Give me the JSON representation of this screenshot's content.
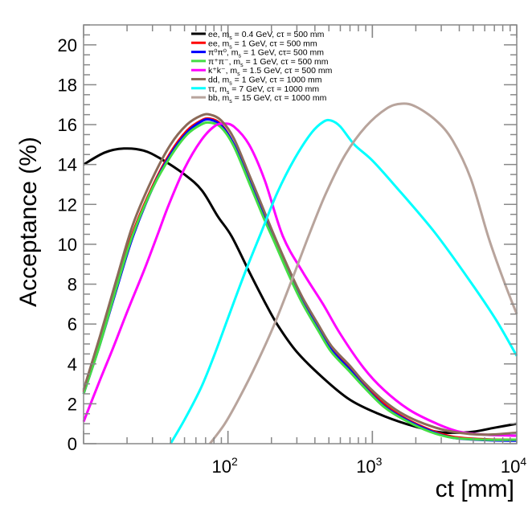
{
  "chart_data": {
    "type": "line",
    "title": "",
    "xlabel": "ct [mm]",
    "ylabel": "Acceptance (%)",
    "xscale": "log",
    "xlim": [
      10,
      10000
    ],
    "ylim": [
      0,
      21
    ],
    "x_tick_labels": [
      {
        "value": 100,
        "base": "10",
        "exp": "2"
      },
      {
        "value": 1000,
        "base": "10",
        "exp": "3"
      },
      {
        "value": 10000,
        "base": "10",
        "exp": "4"
      }
    ],
    "y_tick_labels": [
      "0",
      "2",
      "4",
      "6",
      "8",
      "10",
      "12",
      "14",
      "16",
      "18",
      "20"
    ],
    "y_ticks": [
      0,
      2,
      4,
      6,
      8,
      10,
      12,
      14,
      16,
      18,
      20
    ],
    "grid": false,
    "legend_position": "top-center",
    "series": [
      {
        "name": "ee, m_s = 0.4 GeV, cτ = 500 mm",
        "color": "#000000",
        "points": [
          [
            10,
            14.0
          ],
          [
            14,
            14.6
          ],
          [
            19,
            14.8
          ],
          [
            26,
            14.7
          ],
          [
            34,
            14.3
          ],
          [
            50,
            13.5
          ],
          [
            66,
            12.7
          ],
          [
            85,
            11.4
          ],
          [
            106,
            10.4
          ],
          [
            143,
            8.5
          ],
          [
            180,
            7.1
          ],
          [
            223,
            5.9
          ],
          [
            300,
            4.6
          ],
          [
            455,
            3.3
          ],
          [
            700,
            2.2
          ],
          [
            1100,
            1.5
          ],
          [
            1700,
            1.0
          ],
          [
            2770,
            0.6
          ],
          [
            3600,
            0.55
          ],
          [
            5000,
            0.6
          ],
          [
            7000,
            0.8
          ],
          [
            10000,
            1.0
          ]
        ]
      },
      {
        "name": "ee, m_s = 1 GeV, cτ = 500 mm",
        "color": "#ff0000",
        "points": [
          [
            10,
            2.6
          ],
          [
            13,
            5.2
          ],
          [
            17,
            8.0
          ],
          [
            22,
            10.6
          ],
          [
            30,
            12.9
          ],
          [
            40,
            14.6
          ],
          [
            52,
            15.7
          ],
          [
            65,
            16.2
          ],
          [
            75,
            16.3
          ],
          [
            90,
            16.0
          ],
          [
            110,
            15.0
          ],
          [
            140,
            13.2
          ],
          [
            175,
            11.5
          ],
          [
            210,
            10.2
          ],
          [
            270,
            8.5
          ],
          [
            330,
            7.2
          ],
          [
            420,
            5.9
          ],
          [
            520,
            4.8
          ],
          [
            700,
            3.8
          ],
          [
            870,
            3.0
          ],
          [
            1200,
            2.0
          ],
          [
            1660,
            1.3
          ],
          [
            2500,
            0.7
          ],
          [
            3600,
            0.35
          ],
          [
            6000,
            0.22
          ],
          [
            10000,
            0.2
          ]
        ]
      },
      {
        "name": "π⁰π⁰, m_s = 1 GeV, cτ= 500 mm",
        "color": "#0000ff",
        "points": [
          [
            10,
            2.5
          ],
          [
            13,
            5.0
          ],
          [
            17,
            7.8
          ],
          [
            22,
            10.4
          ],
          [
            30,
            12.8
          ],
          [
            40,
            14.5
          ],
          [
            52,
            15.6
          ],
          [
            65,
            16.15
          ],
          [
            75,
            16.25
          ],
          [
            90,
            15.95
          ],
          [
            110,
            15.0
          ],
          [
            140,
            13.2
          ],
          [
            175,
            11.5
          ],
          [
            210,
            10.2
          ],
          [
            270,
            8.4
          ],
          [
            330,
            7.1
          ],
          [
            420,
            5.8
          ],
          [
            520,
            4.7
          ],
          [
            700,
            3.7
          ],
          [
            870,
            2.9
          ],
          [
            1200,
            1.9
          ],
          [
            1660,
            1.25
          ],
          [
            2500,
            0.65
          ],
          [
            3600,
            0.3
          ],
          [
            6000,
            0.18
          ],
          [
            10000,
            0.15
          ]
        ]
      },
      {
        "name": "π⁺π⁻, m_s = 1 GeV, cτ = 500 mm",
        "color": "#44dd44",
        "points": [
          [
            10,
            2.5
          ],
          [
            13,
            5.0
          ],
          [
            17,
            7.9
          ],
          [
            22,
            10.5
          ],
          [
            30,
            12.8
          ],
          [
            40,
            14.4
          ],
          [
            52,
            15.5
          ],
          [
            65,
            16.0
          ],
          [
            75,
            16.1
          ],
          [
            90,
            15.85
          ],
          [
            110,
            14.9
          ],
          [
            140,
            13.1
          ],
          [
            175,
            11.4
          ],
          [
            210,
            10.1
          ],
          [
            270,
            8.3
          ],
          [
            330,
            7.0
          ],
          [
            420,
            5.7
          ],
          [
            520,
            4.6
          ],
          [
            700,
            3.6
          ],
          [
            870,
            2.85
          ],
          [
            1200,
            1.85
          ],
          [
            1660,
            1.2
          ],
          [
            2500,
            0.6
          ],
          [
            3600,
            0.3
          ],
          [
            6000,
            0.2
          ],
          [
            10000,
            0.2
          ]
        ]
      },
      {
        "name": "K⁺K⁻, m_s = 1.5 GeV, cτ = 500 mm",
        "color": "#ff00ff",
        "points": [
          [
            10,
            1.1
          ],
          [
            13,
            3.2
          ],
          [
            16,
            4.8
          ],
          [
            20,
            6.6
          ],
          [
            26.6,
            8.8
          ],
          [
            33,
            10.6
          ],
          [
            39,
            12.0
          ],
          [
            50,
            13.8
          ],
          [
            65,
            15.2
          ],
          [
            80,
            15.9
          ],
          [
            93,
            16.05
          ],
          [
            110,
            15.9
          ],
          [
            140,
            15.0
          ],
          [
            180,
            13.2
          ],
          [
            240,
            10.4
          ],
          [
            330,
            8.6
          ],
          [
            455,
            7.0
          ],
          [
            600,
            5.5
          ],
          [
            870,
            3.8
          ],
          [
            1200,
            2.7
          ],
          [
            1800,
            1.7
          ],
          [
            2800,
            1.0
          ],
          [
            4000,
            0.6
          ],
          [
            6000,
            0.45
          ],
          [
            10000,
            0.4
          ]
        ]
      },
      {
        "name": "dd, m_s = 1 GeV, cτ = 1000 mm",
        "color": "#8b6a58",
        "points": [
          [
            10,
            2.7
          ],
          [
            13,
            5.4
          ],
          [
            17,
            8.3
          ],
          [
            22,
            11.0
          ],
          [
            30,
            13.3
          ],
          [
            40,
            15.0
          ],
          [
            52,
            16.0
          ],
          [
            65,
            16.45
          ],
          [
            75,
            16.5
          ],
          [
            90,
            16.2
          ],
          [
            110,
            15.3
          ],
          [
            140,
            13.5
          ],
          [
            175,
            11.8
          ],
          [
            210,
            10.4
          ],
          [
            270,
            8.6
          ],
          [
            330,
            7.3
          ],
          [
            420,
            6.0
          ],
          [
            520,
            4.9
          ],
          [
            700,
            3.9
          ],
          [
            870,
            3.1
          ],
          [
            1200,
            2.15
          ],
          [
            1660,
            1.45
          ],
          [
            2500,
            0.9
          ],
          [
            3600,
            0.6
          ],
          [
            6000,
            0.45
          ],
          [
            10000,
            0.55
          ]
        ]
      },
      {
        "name": "ττ, m_s = 7 GeV, cτ = 1000 mm",
        "color": "#00ffff",
        "points": [
          [
            40,
            0.0
          ],
          [
            50,
            1.2
          ],
          [
            65,
            2.8
          ],
          [
            80,
            4.4
          ],
          [
            100,
            6.3
          ],
          [
            130,
            8.5
          ],
          [
            170,
            10.6
          ],
          [
            220,
            12.6
          ],
          [
            290,
            14.3
          ],
          [
            380,
            15.6
          ],
          [
            460,
            16.15
          ],
          [
            520,
            16.2
          ],
          [
            600,
            15.9
          ],
          [
            750,
            15.0
          ],
          [
            1000,
            14.2
          ],
          [
            1450,
            12.9
          ],
          [
            2700,
            10.6
          ],
          [
            4800,
            8.1
          ],
          [
            7200,
            6.2
          ],
          [
            10000,
            4.4
          ]
        ]
      },
      {
        "name": "bb, m_s = 15 GeV, cτ = 1000 mm",
        "color": "#b8a49c",
        "points": [
          [
            75,
            0.0
          ],
          [
            95,
            1.0
          ],
          [
            120,
            2.3
          ],
          [
            160,
            4.1
          ],
          [
            210,
            6.0
          ],
          [
            280,
            8.3
          ],
          [
            370,
            10.6
          ],
          [
            480,
            12.6
          ],
          [
            650,
            14.5
          ],
          [
            900,
            15.9
          ],
          [
            1250,
            16.8
          ],
          [
            1600,
            17.05
          ],
          [
            2000,
            16.9
          ],
          [
            2770,
            16.2
          ],
          [
            3600,
            15.2
          ],
          [
            4800,
            13.3
          ],
          [
            6400,
            10.3
          ],
          [
            8200,
            8.1
          ],
          [
            10000,
            6.5
          ]
        ]
      }
    ]
  },
  "legend": {
    "entries": [
      {
        "label": "ee, m",
        "sub": "s",
        "rest": " = 0.4 GeV, cτ = 500 mm"
      },
      {
        "label": "ee, m",
        "sub": "s",
        "rest": " = 1 GeV, cτ = 500 mm"
      },
      {
        "label": "π⁰π⁰, m",
        "sub": "s",
        "rest": " = 1 GeV, cτ= 500 mm"
      },
      {
        "label": "π⁺π⁻, m",
        "sub": "s",
        "rest": " = 1 GeV, cτ = 500 mm"
      },
      {
        "label": "k⁺k⁻, m",
        "sub": "s",
        "rest": " = 1.5 GeV, cτ = 500 mm"
      },
      {
        "label": "dd, m",
        "sub": "s",
        "rest": " = 1 GeV, cτ = 1000 mm"
      },
      {
        "label": "ττ, m",
        "sub": "s",
        "rest": " = 7 GeV, cτ = 1000 mm"
      },
      {
        "label": "bb, m",
        "sub": "s",
        "rest": " = 15 GeV, cτ = 1000 mm"
      }
    ]
  }
}
